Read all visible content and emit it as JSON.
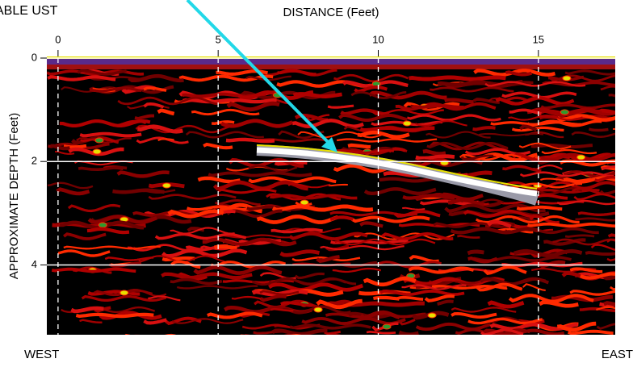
{
  "chart_data": {
    "type": "radargram",
    "annotation": "ABLE UST",
    "xlabel": "DISTANCE (Feet)",
    "ylabel": "APPROXIMATE DEPTH (Feet)",
    "left_label": "WEST",
    "right_label": "EAST",
    "xlim": [
      -0.35,
      17.4
    ],
    "xticks": [
      0,
      5,
      10,
      15
    ],
    "ylim": [
      0,
      5.35
    ],
    "yticks": [
      0,
      2,
      4
    ],
    "grid": true
  }
}
